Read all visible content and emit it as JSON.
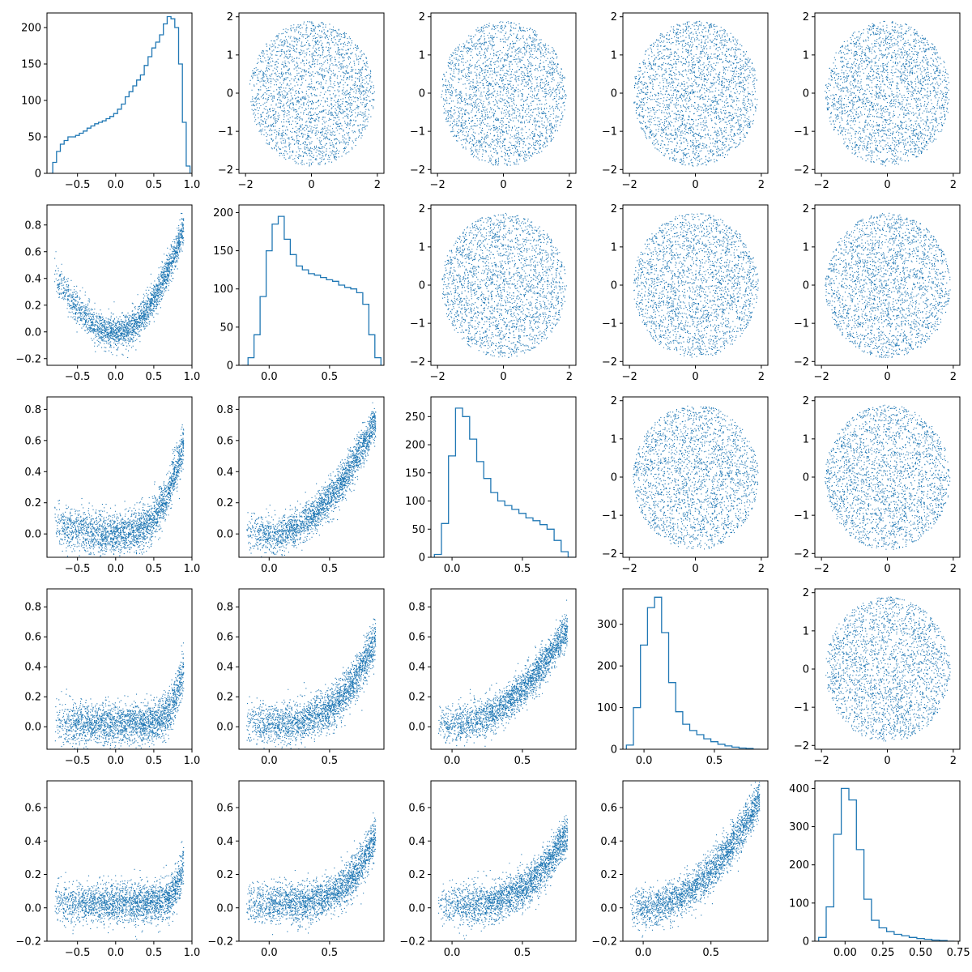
{
  "figure": {
    "type": "corner-plot",
    "color": "#1f77b4",
    "rows": 5,
    "cols": 5,
    "sample_points_upper": 2400,
    "sample_points_lower": 2400
  },
  "chart_data": [
    {
      "row": 0,
      "col": 0,
      "type": "histogram-step",
      "xlim": [
        -0.9,
        1.0
      ],
      "ylim": [
        0,
        220
      ],
      "xticks": [
        -0.5,
        0.0,
        0.5,
        1.0
      ],
      "xtick_labels": [
        "−0.5",
        "0.0",
        "0.5",
        "1.0"
      ],
      "yticks": [
        0,
        50,
        100,
        150,
        200
      ],
      "ytick_labels": [
        "0",
        "50",
        "100",
        "150",
        "200"
      ],
      "x": [
        -0.85,
        -0.8,
        -0.75,
        -0.7,
        -0.65,
        -0.6,
        -0.55,
        -0.5,
        -0.45,
        -0.4,
        -0.35,
        -0.3,
        -0.25,
        -0.2,
        -0.15,
        -0.1,
        -0.05,
        0.0,
        0.05,
        0.1,
        0.15,
        0.2,
        0.25,
        0.3,
        0.35,
        0.4,
        0.45,
        0.5,
        0.55,
        0.6,
        0.65,
        0.7,
        0.75,
        0.8,
        0.85,
        0.9,
        0.95
      ],
      "values": [
        0,
        15,
        30,
        40,
        45,
        50,
        50,
        52,
        55,
        58,
        62,
        65,
        68,
        70,
        72,
        75,
        78,
        82,
        88,
        95,
        105,
        112,
        120,
        128,
        135,
        148,
        160,
        172,
        180,
        190,
        205,
        215,
        212,
        200,
        150,
        70,
        10
      ]
    },
    {
      "row": 0,
      "col": 1,
      "type": "scatter",
      "xlim": [
        -2.2,
        2.2
      ],
      "ylim": [
        -2.1,
        2.1
      ],
      "xticks": [
        -2,
        0,
        2
      ],
      "xtick_labels": [
        "−2",
        "0",
        "2"
      ],
      "yticks": [
        -2,
        -1,
        0,
        1,
        2
      ],
      "ytick_labels": [
        "−2",
        "−1",
        "0",
        "1",
        "2"
      ],
      "distribution": "uniform-disk",
      "radius": 1.9
    },
    {
      "row": 0,
      "col": 2,
      "type": "scatter",
      "xlim": [
        -2.2,
        2.2
      ],
      "ylim": [
        -2.1,
        2.1
      ],
      "xticks": [
        -2,
        0,
        2
      ],
      "xtick_labels": [
        "−2",
        "0",
        "2"
      ],
      "yticks": [
        -2,
        -1,
        0,
        1,
        2
      ],
      "ytick_labels": [
        "−2",
        "−1",
        "0",
        "1",
        "2"
      ],
      "distribution": "uniform-disk",
      "radius": 1.9
    },
    {
      "row": 0,
      "col": 3,
      "type": "scatter",
      "xlim": [
        -2.2,
        2.2
      ],
      "ylim": [
        -2.1,
        2.1
      ],
      "xticks": [
        -2,
        0,
        2
      ],
      "xtick_labels": [
        "−2",
        "0",
        "2"
      ],
      "yticks": [
        -2,
        -1,
        0,
        1,
        2
      ],
      "ytick_labels": [
        "−2",
        "−1",
        "0",
        "1",
        "2"
      ],
      "distribution": "uniform-disk",
      "radius": 1.9
    },
    {
      "row": 0,
      "col": 4,
      "type": "scatter",
      "xlim": [
        -2.2,
        2.2
      ],
      "ylim": [
        -2.1,
        2.1
      ],
      "xticks": [
        -2,
        0,
        2
      ],
      "xtick_labels": [
        "−2",
        "0",
        "2"
      ],
      "yticks": [
        -2,
        -1,
        0,
        1,
        2
      ],
      "ytick_labels": [
        "−2",
        "−1",
        "0",
        "1",
        "2"
      ],
      "distribution": "uniform-disk",
      "radius": 1.9
    },
    {
      "row": 1,
      "col": 0,
      "type": "scatter",
      "xlim": [
        -0.9,
        1.0
      ],
      "ylim": [
        -0.25,
        0.95
      ],
      "xticks": [
        -0.5,
        0.0,
        0.5,
        1.0
      ],
      "xtick_labels": [
        "−0.5",
        "0.0",
        "0.5",
        "1.0"
      ],
      "yticks": [
        -0.2,
        0.0,
        0.2,
        0.4,
        0.6,
        0.8
      ],
      "ytick_labels": [
        "−0.2",
        "0.0",
        "0.2",
        "0.4",
        "0.6",
        "0.8"
      ],
      "distribution": "curve",
      "curve": {
        "a": 0.0,
        "b": 0.0,
        "c": 1.0,
        "p": 2,
        "noise": 0.06
      }
    },
    {
      "row": 1,
      "col": 1,
      "type": "histogram-step",
      "xlim": [
        -0.25,
        0.95
      ],
      "ylim": [
        0,
        210
      ],
      "xticks": [
        0.0,
        0.5
      ],
      "xtick_labels": [
        "0.0",
        "0.5"
      ],
      "yticks": [
        0,
        50,
        100,
        150,
        200
      ],
      "ytick_labels": [
        "0",
        "50",
        "100",
        "150",
        "200"
      ],
      "x": [
        -0.2,
        -0.15,
        -0.1,
        -0.05,
        0.0,
        0.05,
        0.1,
        0.15,
        0.2,
        0.25,
        0.3,
        0.35,
        0.4,
        0.45,
        0.5,
        0.55,
        0.6,
        0.65,
        0.7,
        0.75,
        0.8,
        0.85,
        0.9
      ],
      "values": [
        0,
        10,
        40,
        90,
        150,
        185,
        195,
        165,
        145,
        130,
        125,
        120,
        118,
        115,
        112,
        110,
        105,
        102,
        100,
        95,
        80,
        40,
        10
      ]
    },
    {
      "row": 1,
      "col": 2,
      "type": "scatter",
      "xlim": [
        -2.2,
        2.2
      ],
      "ylim": [
        -2.1,
        2.1
      ],
      "xticks": [
        -2,
        0,
        2
      ],
      "xtick_labels": [
        "−2",
        "0",
        "2"
      ],
      "yticks": [
        -2,
        -1,
        0,
        1,
        2
      ],
      "ytick_labels": [
        "−2",
        "−1",
        "0",
        "1",
        "2"
      ],
      "distribution": "uniform-disk",
      "radius": 1.9
    },
    {
      "row": 1,
      "col": 3,
      "type": "scatter",
      "xlim": [
        -2.2,
        2.2
      ],
      "ylim": [
        -2.1,
        2.1
      ],
      "xticks": [
        -2,
        0,
        2
      ],
      "xtick_labels": [
        "−2",
        "0",
        "2"
      ],
      "yticks": [
        -2,
        -1,
        0,
        1,
        2
      ],
      "ytick_labels": [
        "−2",
        "−1",
        "0",
        "1",
        "2"
      ],
      "distribution": "uniform-disk",
      "radius": 1.9
    },
    {
      "row": 1,
      "col": 4,
      "type": "scatter",
      "xlim": [
        -2.2,
        2.2
      ],
      "ylim": [
        -2.1,
        2.1
      ],
      "xticks": [
        -2,
        0,
        2
      ],
      "xtick_labels": [
        "−2",
        "0",
        "2"
      ],
      "yticks": [
        -2,
        -1,
        0,
        1,
        2
      ],
      "ytick_labels": [
        "−2",
        "−1",
        "0",
        "1",
        "2"
      ],
      "distribution": "uniform-disk",
      "radius": 1.9
    },
    {
      "row": 2,
      "col": 0,
      "type": "scatter",
      "xlim": [
        -0.9,
        1.0
      ],
      "ylim": [
        -0.15,
        0.88
      ],
      "xticks": [
        -0.5,
        0.0,
        0.5,
        1.0
      ],
      "xtick_labels": [
        "−0.5",
        "0.0",
        "0.5",
        "1.0"
      ],
      "yticks": [
        0.0,
        0.2,
        0.4,
        0.6,
        0.8
      ],
      "ytick_labels": [
        "0.0",
        "0.2",
        "0.4",
        "0.6",
        "0.8"
      ],
      "distribution": "curve",
      "curve": {
        "a": 0.0,
        "b": 0.0,
        "c": 0.85,
        "p": 3,
        "noise": 0.07
      }
    },
    {
      "row": 2,
      "col": 1,
      "type": "scatter",
      "xlim": [
        -0.25,
        0.95
      ],
      "ylim": [
        -0.15,
        0.88
      ],
      "xticks": [
        0.0,
        0.5
      ],
      "xtick_labels": [
        "0.0",
        "0.5"
      ],
      "yticks": [
        0.0,
        0.2,
        0.4,
        0.6,
        0.8
      ],
      "ytick_labels": [
        "0.0",
        "0.2",
        "0.4",
        "0.6",
        "0.8"
      ],
      "distribution": "curve",
      "curve": {
        "a": 0.0,
        "b": 0.0,
        "c": 0.95,
        "p": 2,
        "noise": 0.06
      }
    },
    {
      "row": 2,
      "col": 2,
      "type": "histogram-step",
      "xlim": [
        -0.15,
        0.88
      ],
      "ylim": [
        0,
        285
      ],
      "xticks": [
        0.0,
        0.5
      ],
      "xtick_labels": [
        "0.0",
        "0.5"
      ],
      "yticks": [
        0,
        50,
        100,
        150,
        200,
        250
      ],
      "ytick_labels": [
        "0",
        "50",
        "100",
        "150",
        "200",
        "250"
      ],
      "x": [
        -0.1,
        -0.05,
        0.0,
        0.05,
        0.1,
        0.15,
        0.2,
        0.25,
        0.3,
        0.35,
        0.4,
        0.45,
        0.5,
        0.55,
        0.6,
        0.65,
        0.7,
        0.75,
        0.8,
        0.85
      ],
      "values": [
        5,
        60,
        180,
        265,
        250,
        210,
        170,
        140,
        115,
        100,
        92,
        85,
        78,
        70,
        65,
        58,
        50,
        30,
        10,
        0
      ]
    },
    {
      "row": 2,
      "col": 3,
      "type": "scatter",
      "xlim": [
        -2.2,
        2.2
      ],
      "ylim": [
        -2.1,
        2.1
      ],
      "xticks": [
        -2,
        0,
        2
      ],
      "xtick_labels": [
        "−2",
        "0",
        "2"
      ],
      "yticks": [
        -2,
        -1,
        0,
        1,
        2
      ],
      "ytick_labels": [
        "−2",
        "−1",
        "0",
        "1",
        "2"
      ],
      "distribution": "uniform-disk",
      "radius": 1.9
    },
    {
      "row": 2,
      "col": 4,
      "type": "scatter",
      "xlim": [
        -2.2,
        2.2
      ],
      "ylim": [
        -2.1,
        2.1
      ],
      "xticks": [
        -2,
        0,
        2
      ],
      "xtick_labels": [
        "−2",
        "0",
        "2"
      ],
      "yticks": [
        -2,
        -1,
        0,
        1,
        2
      ],
      "ytick_labels": [
        "−2",
        "−1",
        "0",
        "1",
        "2"
      ],
      "distribution": "uniform-disk",
      "radius": 1.9
    },
    {
      "row": 3,
      "col": 0,
      "type": "scatter",
      "xlim": [
        -0.9,
        1.0
      ],
      "ylim": [
        -0.15,
        0.92
      ],
      "xticks": [
        -0.5,
        0.0,
        0.5,
        1.0
      ],
      "xtick_labels": [
        "−0.5",
        "0.0",
        "0.5",
        "1.0"
      ],
      "yticks": [
        0.0,
        0.2,
        0.4,
        0.6,
        0.8
      ],
      "ytick_labels": [
        "0.0",
        "0.2",
        "0.4",
        "0.6",
        "0.8"
      ],
      "distribution": "curve",
      "curve": {
        "a": 0.02,
        "b": 0.0,
        "c": 0.8,
        "p": 6,
        "noise": 0.07
      }
    },
    {
      "row": 3,
      "col": 1,
      "type": "scatter",
      "xlim": [
        -0.25,
        0.95
      ],
      "ylim": [
        -0.15,
        0.92
      ],
      "xticks": [
        0.0,
        0.5
      ],
      "xtick_labels": [
        "0.0",
        "0.5"
      ],
      "yticks": [
        0.0,
        0.2,
        0.4,
        0.6,
        0.8
      ],
      "ytick_labels": [
        "0.0",
        "0.2",
        "0.4",
        "0.6",
        "0.8"
      ],
      "distribution": "curve",
      "curve": {
        "a": 0.02,
        "b": 0.0,
        "c": 0.85,
        "p": 3,
        "noise": 0.07
      }
    },
    {
      "row": 3,
      "col": 2,
      "type": "scatter",
      "xlim": [
        -0.15,
        0.88
      ],
      "ylim": [
        -0.15,
        0.92
      ],
      "xticks": [
        0.0,
        0.5
      ],
      "xtick_labels": [
        "0.0",
        "0.5"
      ],
      "yticks": [
        0.0,
        0.2,
        0.4,
        0.6,
        0.8
      ],
      "ytick_labels": [
        "0.0",
        "0.2",
        "0.4",
        "0.6",
        "0.8"
      ],
      "distribution": "curve",
      "curve": {
        "a": 0.02,
        "b": 0.0,
        "c": 0.95,
        "p": 2,
        "noise": 0.06
      }
    },
    {
      "row": 3,
      "col": 3,
      "type": "histogram-step",
      "xlim": [
        -0.15,
        0.88
      ],
      "ylim": [
        0,
        385
      ],
      "xticks": [
        0.0,
        0.5
      ],
      "xtick_labels": [
        "0.0",
        "0.5"
      ],
      "yticks": [
        0,
        100,
        200,
        300
      ],
      "ytick_labels": [
        "0",
        "100",
        "200",
        "300"
      ],
      "x": [
        -0.1,
        -0.05,
        0.0,
        0.05,
        0.1,
        0.15,
        0.2,
        0.25,
        0.3,
        0.35,
        0.4,
        0.45,
        0.5,
        0.55,
        0.6,
        0.65,
        0.7,
        0.75,
        0.8
      ],
      "values": [
        10,
        100,
        250,
        340,
        365,
        280,
        160,
        90,
        60,
        45,
        35,
        25,
        18,
        12,
        8,
        5,
        3,
        2,
        0
      ]
    },
    {
      "row": 3,
      "col": 4,
      "type": "scatter",
      "xlim": [
        -2.2,
        2.2
      ],
      "ylim": [
        -2.1,
        2.1
      ],
      "xticks": [
        -2,
        0,
        2
      ],
      "xtick_labels": [
        "−2",
        "0",
        "2"
      ],
      "yticks": [
        -2,
        -1,
        0,
        1,
        2
      ],
      "ytick_labels": [
        "−2",
        "−1",
        "0",
        "1",
        "2"
      ],
      "distribution": "uniform-disk",
      "radius": 1.9
    },
    {
      "row": 4,
      "col": 0,
      "type": "scatter",
      "xlim": [
        -0.9,
        1.0
      ],
      "ylim": [
        -0.2,
        0.76
      ],
      "xticks": [
        -0.5,
        0.0,
        0.5,
        1.0
      ],
      "xtick_labels": [
        "−0.5",
        "0.0",
        "0.5",
        "1.0"
      ],
      "yticks": [
        -0.2,
        0.0,
        0.2,
        0.4,
        0.6
      ],
      "ytick_labels": [
        "−0.2",
        "0.0",
        "0.2",
        "0.4",
        "0.6"
      ],
      "distribution": "curve",
      "curve": {
        "a": 0.03,
        "b": 0.0,
        "c": 0.65,
        "p": 8,
        "noise": 0.06
      }
    },
    {
      "row": 4,
      "col": 1,
      "type": "scatter",
      "xlim": [
        -0.25,
        0.95
      ],
      "ylim": [
        -0.2,
        0.76
      ],
      "xticks": [
        0.0,
        0.5
      ],
      "xtick_labels": [
        "0.0",
        "0.5"
      ],
      "yticks": [
        -0.2,
        0.0,
        0.2,
        0.4,
        0.6
      ],
      "ytick_labels": [
        "−0.2",
        "0.0",
        "0.2",
        "0.4",
        "0.6"
      ],
      "distribution": "curve",
      "curve": {
        "a": 0.03,
        "b": 0.0,
        "c": 0.7,
        "p": 4,
        "noise": 0.06
      }
    },
    {
      "row": 4,
      "col": 2,
      "type": "scatter",
      "xlim": [
        -0.15,
        0.88
      ],
      "ylim": [
        -0.2,
        0.76
      ],
      "xticks": [
        0.0,
        0.5
      ],
      "xtick_labels": [
        "0.0",
        "0.5"
      ],
      "yticks": [
        -0.2,
        0.0,
        0.2,
        0.4,
        0.6
      ],
      "ytick_labels": [
        "−0.2",
        "0.0",
        "0.2",
        "0.4",
        "0.6"
      ],
      "distribution": "curve",
      "curve": {
        "a": 0.02,
        "b": 0.0,
        "c": 0.8,
        "p": 3,
        "noise": 0.06
      }
    },
    {
      "row": 4,
      "col": 3,
      "type": "scatter",
      "xlim": [
        -0.15,
        0.92
      ],
      "ylim": [
        -0.2,
        0.76
      ],
      "xticks": [
        0.0,
        0.5
      ],
      "xtick_labels": [
        "0.0",
        "0.5"
      ],
      "yticks": [
        -0.2,
        0.0,
        0.2,
        0.4,
        0.6
      ],
      "ytick_labels": [
        "−0.2",
        "0.0",
        "0.2",
        "0.4",
        "0.6"
      ],
      "distribution": "curve",
      "curve": {
        "a": 0.0,
        "b": 0.0,
        "c": 0.9,
        "p": 2,
        "noise": 0.06
      }
    },
    {
      "row": 4,
      "col": 4,
      "type": "histogram-step",
      "xlim": [
        -0.2,
        0.76
      ],
      "ylim": [
        0,
        420
      ],
      "xticks": [
        0.0,
        0.25,
        0.5,
        0.75
      ],
      "xtick_labels": [
        "0.00",
        "0.25",
        "0.50",
        "0.75"
      ],
      "yticks": [
        0,
        100,
        200,
        300,
        400
      ],
      "ytick_labels": [
        "0",
        "100",
        "200",
        "300",
        "400"
      ],
      "x": [
        -0.15,
        -0.1,
        -0.05,
        0.0,
        0.05,
        0.1,
        0.15,
        0.2,
        0.25,
        0.3,
        0.35,
        0.4,
        0.45,
        0.5,
        0.55,
        0.6,
        0.65,
        0.7
      ],
      "values": [
        10,
        90,
        280,
        400,
        370,
        240,
        110,
        55,
        35,
        25,
        18,
        14,
        10,
        7,
        5,
        3,
        2,
        0
      ]
    }
  ]
}
